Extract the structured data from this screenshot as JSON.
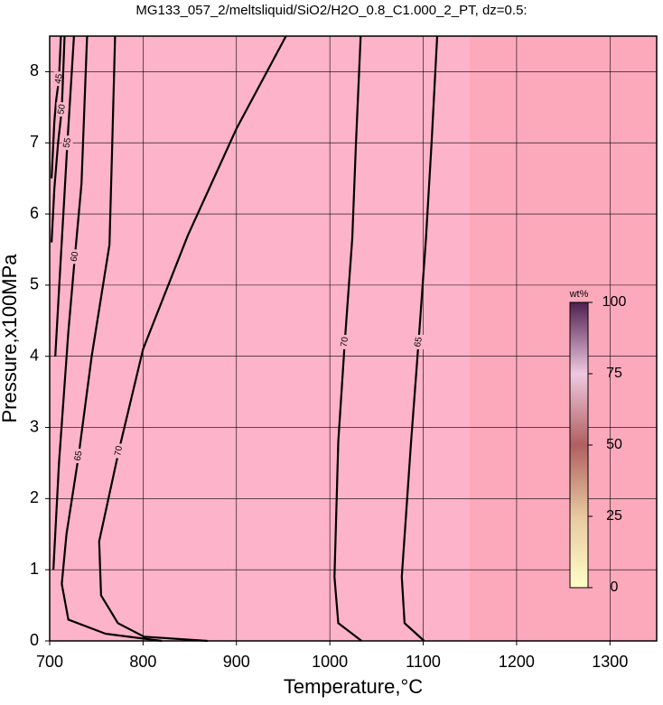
{
  "chart_data": {
    "type": "contour",
    "title": "MG133_057_2/meltsliquid/SiO2/H2O_0.8_C1.000_2_PT, dz=0.5:",
    "x_label": "Temperature,°C",
    "y_label": "Pressure,x100MPa",
    "xlim": [
      700,
      1350
    ],
    "ylim": [
      0,
      8.5
    ],
    "xticks": [
      700,
      800,
      900,
      1000,
      1100,
      1200,
      1300
    ],
    "yticks": [
      0,
      1,
      2,
      3,
      4,
      5,
      6,
      7,
      8
    ],
    "grid": true,
    "contours": [
      {
        "level": 45,
        "x": [
          712,
          710,
          707,
          705,
          702
        ],
        "y": [
          8.5,
          7.9,
          7.6,
          7.3,
          6.5
        ]
      },
      {
        "level": 50,
        "x": [
          716,
          713,
          709,
          705,
          702
        ],
        "y": [
          8.5,
          7.47,
          7.0,
          6.36,
          5.6
        ]
      },
      {
        "level": 55,
        "x": [
          726,
          719,
          716,
          712,
          706
        ],
        "y": [
          8.5,
          7.0,
          6.3,
          5.4,
          4.0
        ]
      },
      {
        "level": 60,
        "x": [
          740,
          734,
          727,
          720,
          710,
          704
        ],
        "y": [
          8.5,
          6.42,
          5.4,
          4.35,
          2.5,
          1.0
        ]
      },
      {
        "level": 65,
        "x": [
          770,
          767,
          764,
          745,
          731,
          718,
          713,
          720,
          760,
          820
        ],
        "y": [
          8.5,
          7.0,
          5.57,
          4.0,
          2.6,
          1.5,
          0.8,
          0.3,
          0.1,
          0.0
        ]
      },
      {
        "level": 70,
        "x": [
          953,
          900,
          848,
          800,
          774,
          753,
          755,
          773,
          801,
          869
        ],
        "y": [
          8.5,
          7.2,
          5.7,
          4.1,
          2.67,
          1.4,
          0.64,
          0.25,
          0.06,
          0.0
        ]
      },
      {
        "level": 70,
        "x": [
          1033,
          1028,
          1024,
          1016,
          1009,
          1005,
          1009,
          1034
        ],
        "y": [
          8.5,
          7.0,
          5.66,
          4.2,
          2.8,
          0.9,
          0.25,
          0.0
        ]
      },
      {
        "level": 65,
        "x": [
          1115,
          1109,
          1103,
          1095,
          1087,
          1077,
          1080,
          1101
        ],
        "y": [
          8.5,
          7.0,
          5.66,
          4.2,
          2.8,
          0.9,
          0.25,
          0.0
        ]
      }
    ],
    "colorbar": {
      "label": "wt%",
      "lim": [
        0,
        100
      ],
      "ticks": [
        0,
        25,
        50,
        75,
        100
      ]
    }
  }
}
